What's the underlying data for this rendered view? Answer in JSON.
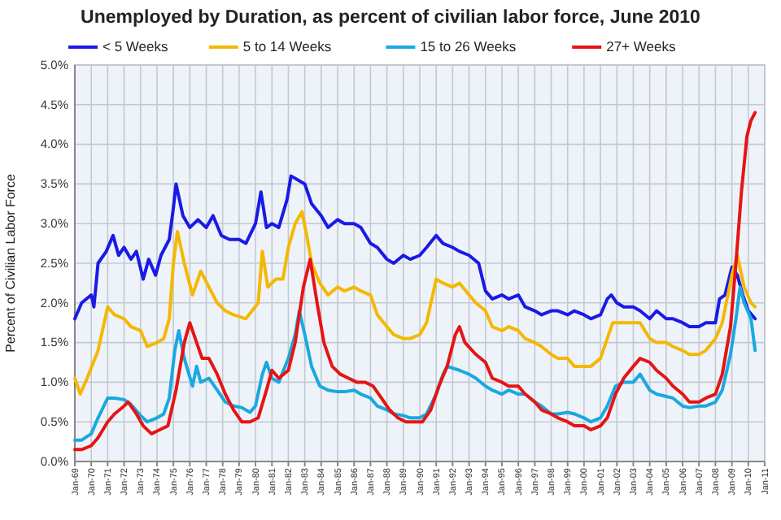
{
  "chart_data": {
    "type": "line",
    "title": "Unemployed by Duration, as percent of civilian labor force, June 2010",
    "ylabel": "Percent of Civilian Labor Force",
    "legend": "top",
    "grid": true,
    "line_style": "solid",
    "marker": "none",
    "xlim": [
      "1969-01",
      "2011-01"
    ],
    "xticks": [
      {
        "value": "1969-01",
        "label": "Jan-69"
      },
      {
        "value": "1970-01",
        "label": "Jan-70"
      },
      {
        "value": "1971-01",
        "label": "Jan-71"
      },
      {
        "value": "1972-01",
        "label": "Jan-72"
      },
      {
        "value": "1973-01",
        "label": "Jan-73"
      },
      {
        "value": "1974-01",
        "label": "Jan-74"
      },
      {
        "value": "1975-01",
        "label": "Jan-75"
      },
      {
        "value": "1976-01",
        "label": "Jan-76"
      },
      {
        "value": "1977-01",
        "label": "Jan-77"
      },
      {
        "value": "1978-01",
        "label": "Jan-78"
      },
      {
        "value": "1979-01",
        "label": "Jan-79"
      },
      {
        "value": "1980-01",
        "label": "Jan-80"
      },
      {
        "value": "1981-01",
        "label": "Jan-81"
      },
      {
        "value": "1982-01",
        "label": "Jan-82"
      },
      {
        "value": "1983-01",
        "label": "Jan-83"
      },
      {
        "value": "1984-01",
        "label": "Jan-84"
      },
      {
        "value": "1985-01",
        "label": "Jan-85"
      },
      {
        "value": "1986-01",
        "label": "Jan-86"
      },
      {
        "value": "1987-01",
        "label": "Jan-87"
      },
      {
        "value": "1988-01",
        "label": "Jan-88"
      },
      {
        "value": "1989-01",
        "label": "Jan-89"
      },
      {
        "value": "1990-01",
        "label": "Jan-90"
      },
      {
        "value": "1991-01",
        "label": "Jan-91"
      },
      {
        "value": "1992-01",
        "label": "Jan-92"
      },
      {
        "value": "1993-01",
        "label": "Jan-93"
      },
      {
        "value": "1994-01",
        "label": "Jan-94"
      },
      {
        "value": "1995-01",
        "label": "Jan-95"
      },
      {
        "value": "1996-01",
        "label": "Jan-96"
      },
      {
        "value": "1997-01",
        "label": "Jan-97"
      },
      {
        "value": "1998-01",
        "label": "Jan-98"
      },
      {
        "value": "1999-01",
        "label": "Jan-99"
      },
      {
        "value": "2000-01",
        "label": "Jan-00"
      },
      {
        "value": "2001-01",
        "label": "Jan-01"
      },
      {
        "value": "2002-01",
        "label": "Jan-02"
      },
      {
        "value": "2003-01",
        "label": "Jan-03"
      },
      {
        "value": "2004-01",
        "label": "Jan-04"
      },
      {
        "value": "2005-01",
        "label": "Jan-05"
      },
      {
        "value": "2006-01",
        "label": "Jan-06"
      },
      {
        "value": "2007-01",
        "label": "Jan-07"
      },
      {
        "value": "2008-01",
        "label": "Jan-08"
      },
      {
        "value": "2009-01",
        "label": "Jan-09"
      },
      {
        "value": "2010-01",
        "label": "Jan-10"
      },
      {
        "value": "2011-01",
        "label": "Jan-11"
      }
    ],
    "ylim": [
      0,
      5
    ],
    "yticks": [
      {
        "value": 0,
        "label": "0.0%"
      },
      {
        "value": 0.5,
        "label": "0.5%"
      },
      {
        "value": 1,
        "label": "1.0%"
      },
      {
        "value": 1.5,
        "label": "1.5%"
      },
      {
        "value": 2,
        "label": "2.0%"
      },
      {
        "value": 2.5,
        "label": "2.5%"
      },
      {
        "value": 3,
        "label": "3.0%"
      },
      {
        "value": 3.5,
        "label": "3.5%"
      },
      {
        "value": 4,
        "label": "4.0%"
      },
      {
        "value": 4.5,
        "label": "4.5%"
      },
      {
        "value": 5,
        "label": "5.0%"
      }
    ],
    "series": [
      {
        "name": "< 5 Weeks",
        "color": "#1a1ae6",
        "x": [
          "1969-01",
          "1969-06",
          "1970-01",
          "1970-03",
          "1970-06",
          "1970-12",
          "1971-05",
          "1971-09",
          "1972-01",
          "1972-06",
          "1972-10",
          "1973-03",
          "1973-07",
          "1973-12",
          "1974-04",
          "1974-10",
          "1975-01",
          "1975-03",
          "1975-08",
          "1976-01",
          "1976-07",
          "1977-01",
          "1977-06",
          "1977-12",
          "1978-06",
          "1979-01",
          "1979-06",
          "1980-01",
          "1980-05",
          "1980-09",
          "1981-01",
          "1981-06",
          "1981-12",
          "1982-03",
          "1982-08",
          "1983-01",
          "1983-06",
          "1984-01",
          "1984-06",
          "1985-01",
          "1985-06",
          "1986-01",
          "1986-06",
          "1987-01",
          "1987-06",
          "1988-01",
          "1988-06",
          "1989-01",
          "1989-06",
          "1990-01",
          "1990-06",
          "1991-01",
          "1991-06",
          "1992-01",
          "1992-06",
          "1993-01",
          "1993-08",
          "1994-01",
          "1994-06",
          "1995-01",
          "1995-06",
          "1996-01",
          "1996-06",
          "1997-01",
          "1997-06",
          "1998-01",
          "1998-06",
          "1999-01",
          "1999-06",
          "2000-01",
          "2000-06",
          "2001-01",
          "2001-06",
          "2001-09",
          "2002-01",
          "2002-06",
          "2003-01",
          "2003-06",
          "2004-01",
          "2004-06",
          "2005-01",
          "2005-06",
          "2006-01",
          "2006-06",
          "2007-01",
          "2007-06",
          "2008-01",
          "2008-04",
          "2008-08",
          "2009-01",
          "2009-05",
          "2009-09",
          "2010-01",
          "2010-06"
        ],
        "values": [
          1.8,
          2.0,
          2.1,
          1.95,
          2.5,
          2.65,
          2.85,
          2.6,
          2.7,
          2.55,
          2.65,
          2.3,
          2.55,
          2.35,
          2.6,
          2.8,
          3.2,
          3.5,
          3.1,
          2.95,
          3.05,
          2.95,
          3.1,
          2.85,
          2.8,
          2.8,
          2.75,
          3.0,
          3.4,
          2.95,
          3.0,
          2.95,
          3.3,
          3.6,
          3.55,
          3.5,
          3.25,
          3.1,
          2.95,
          3.05,
          3.0,
          3.0,
          2.95,
          2.75,
          2.7,
          2.55,
          2.5,
          2.6,
          2.55,
          2.6,
          2.7,
          2.85,
          2.75,
          2.7,
          2.65,
          2.6,
          2.5,
          2.15,
          2.05,
          2.1,
          2.05,
          2.1,
          1.95,
          1.9,
          1.85,
          1.9,
          1.9,
          1.85,
          1.9,
          1.85,
          1.8,
          1.85,
          2.05,
          2.1,
          2.0,
          1.95,
          1.95,
          1.9,
          1.8,
          1.9,
          1.8,
          1.8,
          1.75,
          1.7,
          1.7,
          1.75,
          1.75,
          2.05,
          2.1,
          2.45,
          2.35,
          2.1,
          1.9,
          1.8
        ]
      },
      {
        "name": "5 to 14 Weeks",
        "color": "#f5b800",
        "x": [
          "1969-01",
          "1969-05",
          "1969-10",
          "1970-06",
          "1971-01",
          "1971-06",
          "1972-01",
          "1972-06",
          "1973-01",
          "1973-06",
          "1974-01",
          "1974-06",
          "1974-10",
          "1975-01",
          "1975-04",
          "1975-09",
          "1976-03",
          "1976-09",
          "1977-03",
          "1977-09",
          "1978-03",
          "1978-09",
          "1979-06",
          "1980-03",
          "1980-06",
          "1980-10",
          "1981-04",
          "1981-09",
          "1982-01",
          "1982-06",
          "1982-11",
          "1983-03",
          "1983-06",
          "1983-12",
          "1984-06",
          "1985-01",
          "1985-06",
          "1986-01",
          "1986-06",
          "1987-01",
          "1987-06",
          "1988-01",
          "1988-06",
          "1989-01",
          "1989-06",
          "1990-01",
          "1990-06",
          "1991-01",
          "1991-06",
          "1992-01",
          "1992-06",
          "1993-01",
          "1993-06",
          "1994-01",
          "1994-06",
          "1995-01",
          "1995-06",
          "1996-01",
          "1996-06",
          "1997-01",
          "1997-06",
          "1998-01",
          "1998-06",
          "1999-01",
          "1999-06",
          "2000-01",
          "2000-06",
          "2001-01",
          "2001-06",
          "2001-10",
          "2002-03",
          "2002-09",
          "2003-06",
          "2004-01",
          "2004-06",
          "2005-01",
          "2005-06",
          "2006-01",
          "2006-06",
          "2007-01",
          "2007-06",
          "2008-01",
          "2008-06",
          "2009-01",
          "2009-05",
          "2009-10",
          "2010-03",
          "2010-06"
        ],
        "values": [
          1.05,
          0.85,
          1.05,
          1.4,
          1.95,
          1.85,
          1.8,
          1.7,
          1.65,
          1.45,
          1.5,
          1.55,
          1.8,
          2.5,
          2.9,
          2.5,
          2.1,
          2.4,
          2.2,
          2.0,
          1.9,
          1.85,
          1.8,
          2.0,
          2.65,
          2.2,
          2.3,
          2.3,
          2.7,
          3.0,
          3.15,
          2.8,
          2.5,
          2.25,
          2.1,
          2.2,
          2.15,
          2.2,
          2.15,
          2.1,
          1.85,
          1.7,
          1.6,
          1.55,
          1.55,
          1.6,
          1.75,
          2.3,
          2.25,
          2.2,
          2.25,
          2.1,
          2.0,
          1.9,
          1.7,
          1.65,
          1.7,
          1.65,
          1.55,
          1.5,
          1.45,
          1.35,
          1.3,
          1.3,
          1.2,
          1.2,
          1.2,
          1.3,
          1.55,
          1.75,
          1.75,
          1.75,
          1.75,
          1.55,
          1.5,
          1.5,
          1.45,
          1.4,
          1.35,
          1.35,
          1.4,
          1.55,
          1.75,
          2.35,
          2.6,
          2.2,
          2.0,
          1.95
        ]
      },
      {
        "name": "15 to 26 Weeks",
        "color": "#1aa8e0",
        "x": [
          "1969-01",
          "1969-06",
          "1970-01",
          "1970-06",
          "1971-01",
          "1971-06",
          "1972-01",
          "1972-06",
          "1973-01",
          "1973-06",
          "1974-01",
          "1974-06",
          "1974-10",
          "1975-02",
          "1975-05",
          "1975-09",
          "1976-03",
          "1976-06",
          "1976-09",
          "1977-03",
          "1977-09",
          "1978-03",
          "1978-09",
          "1979-03",
          "1979-09",
          "1980-01",
          "1980-06",
          "1980-09",
          "1981-01",
          "1981-06",
          "1982-01",
          "1982-06",
          "1982-09",
          "1983-01",
          "1983-06",
          "1983-12",
          "1984-06",
          "1985-01",
          "1985-06",
          "1986-01",
          "1986-06",
          "1987-01",
          "1987-06",
          "1988-01",
          "1988-06",
          "1989-01",
          "1989-06",
          "1990-01",
          "1990-06",
          "1991-01",
          "1991-06",
          "1991-09",
          "1992-06",
          "1993-01",
          "1993-06",
          "1994-01",
          "1994-06",
          "1995-01",
          "1995-06",
          "1996-01",
          "1996-06",
          "1997-01",
          "1997-06",
          "1998-01",
          "1998-06",
          "1999-01",
          "1999-06",
          "2000-01",
          "2000-06",
          "2001-01",
          "2001-06",
          "2001-12",
          "2002-06",
          "2003-01",
          "2003-06",
          "2004-01",
          "2004-06",
          "2005-01",
          "2005-06",
          "2006-01",
          "2006-06",
          "2007-01",
          "2007-06",
          "2008-01",
          "2008-06",
          "2008-12",
          "2009-04",
          "2009-07",
          "2009-10",
          "2010-03",
          "2010-06"
        ],
        "values": [
          0.27,
          0.27,
          0.35,
          0.55,
          0.8,
          0.8,
          0.78,
          0.72,
          0.58,
          0.5,
          0.55,
          0.6,
          0.8,
          1.4,
          1.65,
          1.3,
          0.95,
          1.2,
          1.0,
          1.05,
          0.9,
          0.75,
          0.7,
          0.68,
          0.62,
          0.7,
          1.1,
          1.25,
          1.05,
          1.0,
          1.3,
          1.6,
          1.9,
          1.6,
          1.2,
          0.95,
          0.9,
          0.88,
          0.88,
          0.9,
          0.85,
          0.8,
          0.7,
          0.65,
          0.6,
          0.58,
          0.55,
          0.55,
          0.6,
          0.85,
          1.1,
          1.2,
          1.15,
          1.1,
          1.05,
          0.95,
          0.9,
          0.85,
          0.9,
          0.85,
          0.85,
          0.75,
          0.7,
          0.6,
          0.6,
          0.62,
          0.6,
          0.55,
          0.5,
          0.55,
          0.7,
          0.95,
          1.0,
          1.0,
          1.1,
          0.9,
          0.85,
          0.82,
          0.8,
          0.7,
          0.68,
          0.7,
          0.7,
          0.75,
          0.9,
          1.35,
          1.8,
          2.2,
          2.0,
          1.8,
          1.4
        ]
      },
      {
        "name": "27+ Weeks",
        "color": "#e61414",
        "x": [
          "1969-01",
          "1969-06",
          "1970-01",
          "1970-06",
          "1971-01",
          "1971-06",
          "1972-01",
          "1972-04",
          "1972-10",
          "1973-03",
          "1973-09",
          "1974-03",
          "1974-09",
          "1975-03",
          "1975-09",
          "1976-01",
          "1976-06",
          "1976-10",
          "1977-03",
          "1977-09",
          "1978-03",
          "1978-09",
          "1979-03",
          "1979-09",
          "1980-03",
          "1980-09",
          "1981-01",
          "1981-06",
          "1982-01",
          "1982-06",
          "1982-12",
          "1983-05",
          "1983-10",
          "1984-03",
          "1984-09",
          "1985-03",
          "1985-09",
          "1986-03",
          "1986-09",
          "1987-03",
          "1987-09",
          "1988-03",
          "1988-09",
          "1989-03",
          "1989-09",
          "1990-03",
          "1990-09",
          "1991-03",
          "1991-09",
          "1992-03",
          "1992-06",
          "1992-10",
          "1993-06",
          "1994-01",
          "1994-06",
          "1995-01",
          "1995-06",
          "1996-01",
          "1996-06",
          "1997-01",
          "1997-06",
          "1998-01",
          "1998-06",
          "1999-01",
          "1999-06",
          "2000-01",
          "2000-06",
          "2001-01",
          "2001-06",
          "2001-12",
          "2002-06",
          "2003-01",
          "2003-06",
          "2004-01",
          "2004-06",
          "2005-01",
          "2005-06",
          "2006-01",
          "2006-06",
          "2007-01",
          "2007-06",
          "2008-01",
          "2008-06",
          "2008-12",
          "2009-04",
          "2009-08",
          "2009-12",
          "2010-03",
          "2010-06"
        ],
        "values": [
          0.15,
          0.15,
          0.2,
          0.3,
          0.5,
          0.6,
          0.7,
          0.75,
          0.6,
          0.45,
          0.35,
          0.4,
          0.45,
          0.9,
          1.5,
          1.75,
          1.5,
          1.3,
          1.3,
          1.1,
          0.85,
          0.65,
          0.5,
          0.5,
          0.55,
          0.9,
          1.15,
          1.05,
          1.15,
          1.5,
          2.2,
          2.55,
          2.0,
          1.5,
          1.2,
          1.1,
          1.05,
          1.0,
          1.0,
          0.95,
          0.8,
          0.65,
          0.55,
          0.5,
          0.5,
          0.5,
          0.65,
          0.95,
          1.2,
          1.6,
          1.7,
          1.5,
          1.35,
          1.25,
          1.05,
          1.0,
          0.95,
          0.95,
          0.85,
          0.75,
          0.65,
          0.6,
          0.55,
          0.5,
          0.45,
          0.45,
          0.4,
          0.45,
          0.55,
          0.85,
          1.05,
          1.2,
          1.3,
          1.25,
          1.15,
          1.05,
          0.95,
          0.85,
          0.75,
          0.75,
          0.8,
          0.85,
          1.1,
          1.7,
          2.5,
          3.4,
          4.1,
          4.3,
          4.4
        ]
      }
    ]
  }
}
